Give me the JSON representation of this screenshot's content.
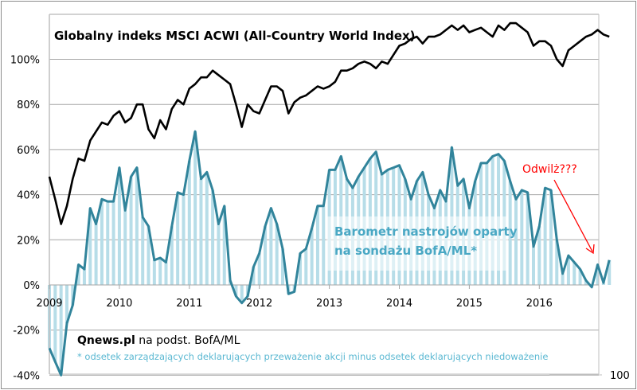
{
  "chart_data": {
    "type": "line",
    "title": "Globalny indeks MSCI ACWI (All-Country World Index)",
    "xlabel": "",
    "ylabel": "",
    "x_start": "2009-01",
    "x_frequency": "monthly",
    "x_tick_labels": [
      "2009",
      "2010",
      "2011",
      "2012",
      "2013",
      "2014",
      "2015",
      "2016"
    ],
    "y_tick_labels": [
      "-40%",
      "-20%",
      "0%",
      "20%",
      "40%",
      "60%",
      "80%",
      "100%"
    ],
    "ylim": [
      -40,
      120
    ],
    "grid": true,
    "series": [
      {
        "name": "MSCI ACWI",
        "color": "#000000",
        "style": "line",
        "values": [
          48,
          38,
          27,
          35,
          47,
          56,
          55,
          64,
          68,
          72,
          71,
          75,
          77,
          72,
          74,
          80,
          80,
          69,
          65,
          73,
          69,
          78,
          82,
          80,
          87,
          89,
          92,
          92,
          95,
          93,
          91,
          89,
          80,
          70,
          80,
          77,
          76,
          82,
          88,
          88,
          86,
          76,
          81,
          83,
          84,
          86,
          88,
          87,
          88,
          90,
          95,
          95,
          96,
          98,
          99,
          98,
          96,
          99,
          98,
          102,
          106,
          107,
          109,
          110,
          107,
          110,
          110,
          111,
          113,
          115,
          113,
          115,
          112,
          113,
          114,
          112,
          110,
          115,
          113,
          116,
          116,
          114,
          112,
          106,
          108,
          108,
          106,
          100,
          97,
          104,
          106,
          108,
          110,
          111,
          113,
          111,
          110
        ]
      },
      {
        "name": "Barometr nastrojów oparty na sondażu BofA/ML*",
        "color": "#31849b",
        "bar_color": "#b7dde8",
        "style": "line-with-bars",
        "values": [
          -28,
          -34,
          -40,
          -17,
          -9,
          9,
          7,
          34,
          27,
          38,
          37,
          37,
          52,
          33,
          48,
          52,
          30,
          26,
          11,
          12,
          10,
          26,
          41,
          40,
          55,
          68,
          47,
          50,
          42,
          27,
          35,
          2,
          -5,
          -8,
          -5,
          8,
          14,
          26,
          34,
          27,
          16,
          -4,
          -3,
          14,
          16,
          25,
          35,
          35,
          51,
          51,
          57,
          47,
          43,
          48,
          52,
          56,
          59,
          49,
          51,
          52,
          53,
          47,
          38,
          46,
          50,
          40,
          34,
          42,
          37,
          61,
          44,
          47,
          34,
          46,
          54,
          54,
          57,
          58,
          55,
          46,
          38,
          42,
          41,
          17,
          26,
          43,
          42,
          20,
          5,
          13,
          10,
          7,
          2,
          -1,
          9,
          1,
          11
        ]
      }
    ],
    "annotations": {
      "barometer_label_line1": "Barometr nastrojów oparty",
      "barometer_label_line2": "na sondażu BofA/ML*",
      "arrow_text": "Odwilż???",
      "source_bold": "Qnews.pl",
      "source_rest": " na podst. BofA/ML",
      "footnote": "* odsetek zarządzających deklarujących przeważenie akcji minus odsetek deklarujących niedoważenie",
      "corner_value": "100"
    },
    "legend": "none"
  }
}
